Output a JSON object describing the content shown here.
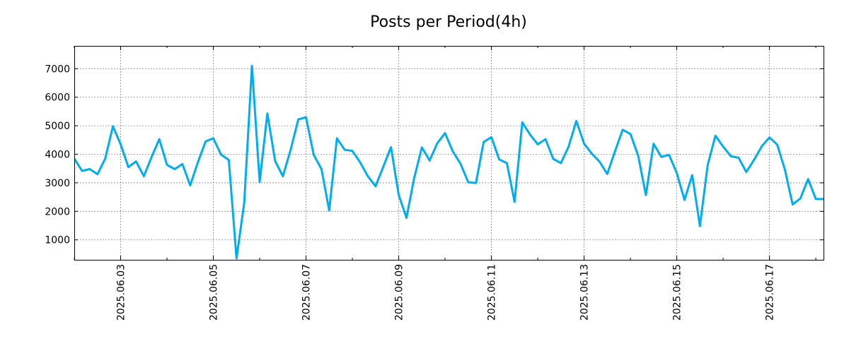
{
  "chart_data": {
    "type": "line",
    "title": "Posts per Period(4h)",
    "xlabel": "",
    "ylabel": "",
    "series_color": "#00AEEF",
    "ylim": [
      300,
      7800
    ],
    "yticks": [
      1000,
      2000,
      3000,
      4000,
      5000,
      6000,
      7000
    ],
    "ytick_labels": [
      "1000",
      "2000",
      "3000",
      "4000",
      "5000",
      "6000",
      "7000"
    ],
    "x_start": "2025.06.02 00:00",
    "x_step_hours": 4,
    "xlim_index": [
      0,
      97
    ],
    "xtick_labels": [
      "2025.06.03",
      "2025.06.05",
      "2025.06.07",
      "2025.06.09",
      "2025.06.11",
      "2025.06.13",
      "2025.06.15",
      "2025.06.17"
    ],
    "xtick_index": [
      6,
      18,
      30,
      42,
      54,
      66,
      78,
      90
    ],
    "grid": true,
    "values": [
      3850,
      3420,
      3480,
      3300,
      3850,
      4980,
      4350,
      3550,
      3750,
      3230,
      3900,
      4530,
      3630,
      3480,
      3660,
      2910,
      3720,
      4450,
      4560,
      3990,
      3800,
      350,
      2300,
      7100,
      3030,
      5430,
      3760,
      3230,
      4150,
      5220,
      5300,
      3980,
      3480,
      2030,
      4560,
      4160,
      4120,
      3720,
      3230,
      2880,
      3560,
      4250,
      2580,
      1770,
      3170,
      4240,
      3780,
      4390,
      4740,
      4100,
      3670,
      3020,
      2990,
      4430,
      4600,
      3820,
      3690,
      2330,
      5120,
      4690,
      4350,
      4530,
      3840,
      3690,
      4270,
      5170,
      4370,
      4020,
      3740,
      3310,
      4100,
      4860,
      4710,
      3950,
      2570,
      4370,
      3910,
      3980,
      3340,
      2400,
      3270,
      1480,
      3620,
      4650,
      4270,
      3930,
      3880,
      3380,
      3800,
      4280,
      4590,
      4340,
      3460,
      2240,
      2450,
      3130,
      2430,
      2430
    ]
  }
}
